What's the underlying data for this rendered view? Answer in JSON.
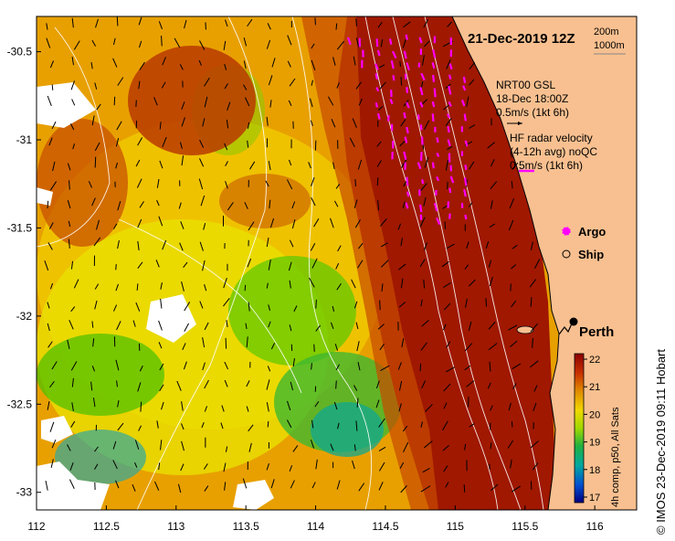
{
  "map": {
    "title": "21-Dec-2019 12Z",
    "contours": {
      "label_200": "200m",
      "label_1000": "1000m"
    },
    "model_vectors": {
      "line1": "NRT00 GSL",
      "line2": "18-Dec 18:00Z",
      "scale": "0.5m/s (1kt 6h)"
    },
    "radar_vectors": {
      "line1": "HF radar velocity",
      "line2": "(4-12h avg) noQC",
      "scale": "0.5m/s (1kt 6h)"
    },
    "legend": {
      "argo": "Argo",
      "ship": "Ship",
      "argo_color": "#ff00ff"
    },
    "city": "Perth",
    "credit": "© IMOS 23-Dec-2019 09:11 Hobart",
    "extent": {
      "lon": [
        112,
        116.3
      ],
      "lat": [
        -33.1,
        -30.3
      ]
    },
    "x_ticks": [
      "112",
      "112.5",
      "113",
      "113.5",
      "114",
      "114.5",
      "115",
      "115.5",
      "116"
    ],
    "y_ticks": [
      "-30.5",
      "-31",
      "-31.5",
      "-32",
      "-32.5",
      "-33"
    ],
    "colorbar": {
      "label": "4h comp, p50, All Sats",
      "ticks": [
        "22",
        "21",
        "20",
        "19",
        "18",
        "17"
      ],
      "range": [
        16.8,
        22.2
      ],
      "colors": [
        "#8b0000",
        "#cc4400",
        "#e09000",
        "#f0e000",
        "#80d000",
        "#00b040",
        "#00a0b0",
        "#0040d0",
        "#000080"
      ]
    },
    "land_color": "#f8c090"
  }
}
